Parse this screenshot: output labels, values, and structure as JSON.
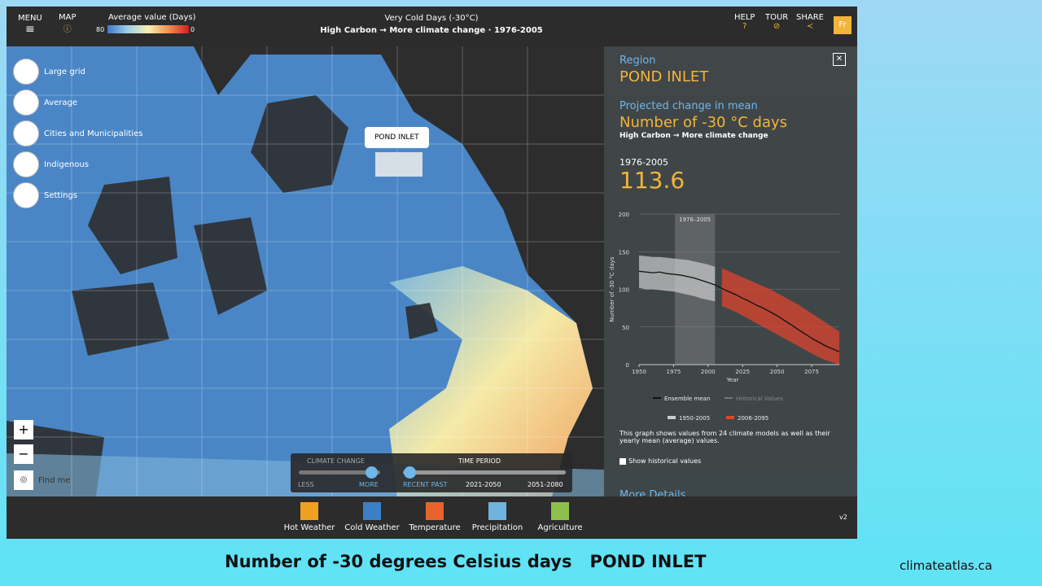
{
  "header": {
    "menu": "MENU",
    "map": "MAP",
    "legend_title": "Average value (Days)",
    "legend_low": "80",
    "legend_high": "0",
    "title": "Very Cold Days (-30°C)",
    "scenario": "High Carbon",
    "arrow": "→",
    "change": "More climate change",
    "period": "1976-2005",
    "help": "HELP",
    "tour": "TOUR",
    "share": "SHARE",
    "lang": "Fr"
  },
  "tools": [
    "Large grid",
    "Average",
    "Cities and Municipalities",
    "Indigenous",
    "Settings"
  ],
  "zoom": {
    "in": "+",
    "out": "−",
    "find": "Find me"
  },
  "map_popup": "POND INLET",
  "slider": {
    "climate_title": "CLIMATE CHANGE",
    "time_title": "TIME PERIOD",
    "less": "LESS",
    "more": "MORE",
    "periods": [
      "RECENT PAST",
      "2021-2050",
      "2051-2080"
    ]
  },
  "panel": {
    "region_label": "Region",
    "region": "POND INLET",
    "projected": "Projected change in mean",
    "variable": "Number of -30 °C days",
    "scenario": "High Carbon → More climate change",
    "period": "1976-2005",
    "value": "113.6",
    "note": "This graph shows values from 24 climate models as well as their yearly mean (average) values.",
    "checkbox": "Show historical values",
    "more": "More Details"
  },
  "chart_data": {
    "type": "line",
    "x_label": "Year",
    "y_label": "Number of -30 °C days",
    "xlim": [
      1950,
      2095
    ],
    "xticks": [
      1950,
      1975,
      2000,
      2025,
      2050,
      2075
    ],
    "ylim": [
      0,
      200
    ],
    "yticks": [
      0,
      50,
      100,
      150,
      200
    ],
    "band": {
      "label": "1976–2005",
      "from": 1976,
      "to": 2005
    },
    "legend": [
      {
        "name": "Ensemble mean",
        "color": "#111111"
      },
      {
        "name": "Historical Values",
        "color": "#777777"
      },
      {
        "name": "1950-2005",
        "color": "#cccccc"
      },
      {
        "name": "2006-2095",
        "color": "#e8432d"
      }
    ],
    "ranges": [
      {
        "name": "1950-2005",
        "color": "#cccccc",
        "x": [
          1950,
          1955,
          1960,
          1965,
          1970,
          1975,
          1980,
          1985,
          1990,
          1995,
          2000,
          2005
        ],
        "low": [
          102,
          100,
          100,
          99,
          98,
          97,
          95,
          93,
          91,
          88,
          86,
          84
        ],
        "high": [
          145,
          144,
          143,
          143,
          142,
          141,
          140,
          139,
          137,
          135,
          133,
          130
        ]
      },
      {
        "name": "2006-2095",
        "color": "#e8432d",
        "x": [
          2010,
          2015,
          2020,
          2025,
          2030,
          2035,
          2040,
          2045,
          2050,
          2055,
          2060,
          2065,
          2070,
          2075,
          2080,
          2085,
          2090,
          2095
        ],
        "low": [
          78,
          74,
          70,
          65,
          60,
          55,
          50,
          45,
          40,
          35,
          30,
          25,
          20,
          15,
          10,
          6,
          3,
          0
        ],
        "high": [
          128,
          124,
          120,
          116,
          112,
          108,
          104,
          100,
          95,
          90,
          85,
          80,
          74,
          68,
          62,
          56,
          50,
          44
        ]
      }
    ],
    "series": [
      {
        "name": "Ensemble mean",
        "color": "#111111",
        "x": [
          1950,
          1955,
          1960,
          1965,
          1970,
          1975,
          1980,
          1985,
          1990,
          1995,
          2000,
          2005,
          2010,
          2015,
          2020,
          2025,
          2030,
          2035,
          2040,
          2045,
          2050,
          2055,
          2060,
          2065,
          2070,
          2075,
          2080,
          2085,
          2090,
          2095
        ],
        "values": [
          124,
          123,
          122,
          123,
          121,
          120,
          119,
          117,
          115,
          112,
          109,
          106,
          101,
          97,
          93,
          88,
          84,
          79,
          75,
          70,
          65,
          59,
          53,
          47,
          41,
          35,
          30,
          25,
          21,
          17
        ]
      }
    ]
  },
  "categories": [
    "Hot Weather",
    "Cold Weather",
    "Temperature",
    "Precipitation",
    "Agriculture"
  ],
  "version": "v2",
  "caption": {
    "text": "Number of -30 degrees Celsius days",
    "region": "POND INLET",
    "site": "climateatlas.ca"
  }
}
